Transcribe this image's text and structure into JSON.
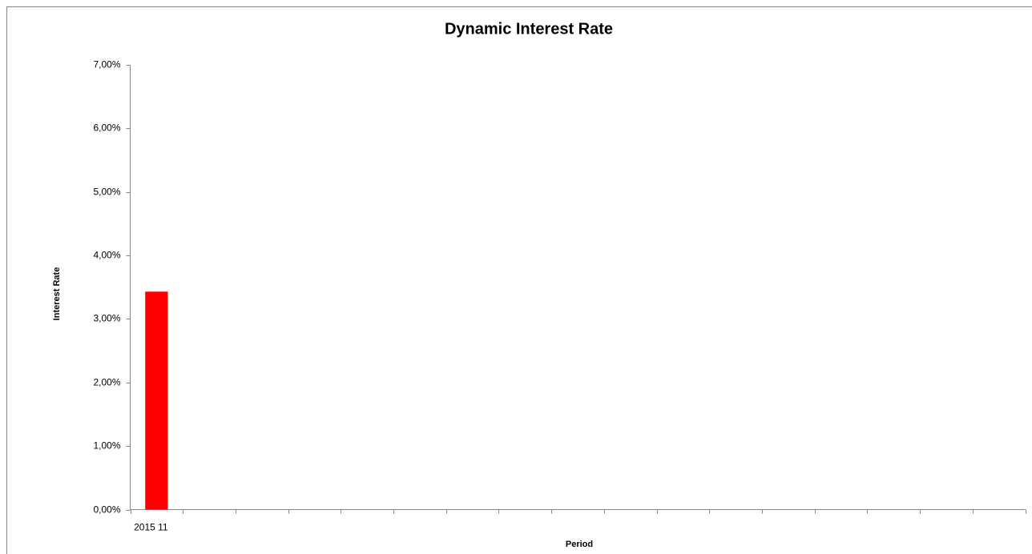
{
  "chart_data": {
    "type": "bar",
    "title": "Dynamic Interest Rate",
    "x_label": "Period",
    "y_label": "Interest Rate",
    "categories": [
      "2015 11",
      null,
      null,
      null,
      null,
      null,
      null,
      null,
      null,
      null,
      null,
      null,
      null,
      null,
      null,
      null,
      null
    ],
    "values": [
      3.43,
      null,
      null,
      null,
      null,
      null,
      null,
      null,
      null,
      null,
      null,
      null,
      null,
      null,
      null,
      null,
      null
    ],
    "color": "#ff0000",
    "ylim": [
      0,
      7
    ],
    "yticks": [
      {
        "value": 0,
        "label": "0,00%"
      },
      {
        "value": 1,
        "label": "1,00%"
      },
      {
        "value": 2,
        "label": "2,00%"
      },
      {
        "value": 3,
        "label": "3,00%"
      },
      {
        "value": 4,
        "label": "4,00%"
      },
      {
        "value": 5,
        "label": "5,00%"
      },
      {
        "value": 6,
        "label": "6,00%"
      },
      {
        "value": 7,
        "label": "7,00%"
      }
    ],
    "grid": false
  }
}
